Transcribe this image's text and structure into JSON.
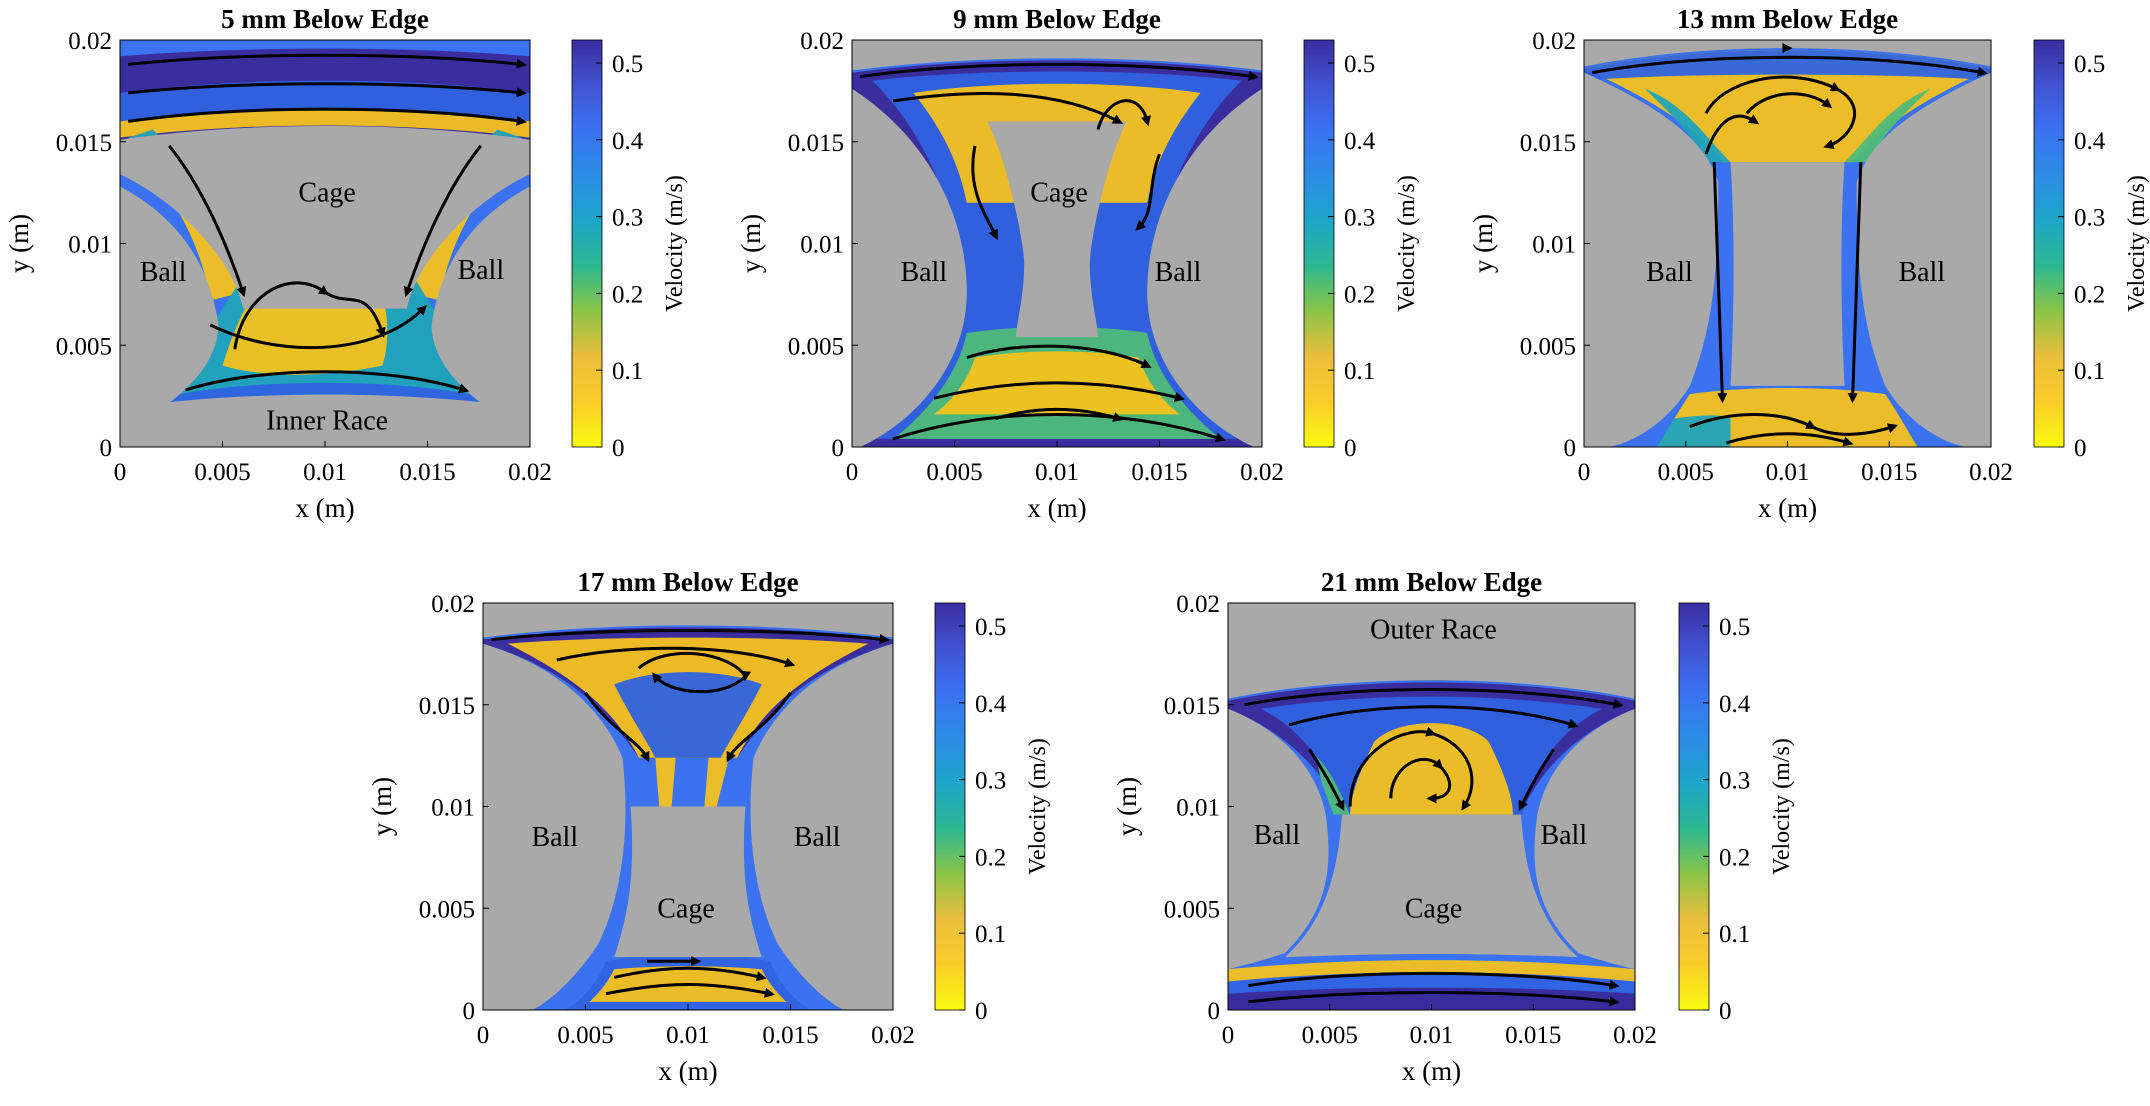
{
  "colors": {
    "solid": "#a9a9a9",
    "stream": "#000000",
    "colormap": [
      "#f9fb0e",
      "#fbcd2b",
      "#ebbe3b",
      "#8cc447",
      "#2cb890",
      "#1ca6c8",
      "#2c8ce6",
      "#3a72f2",
      "#4153d2",
      "#3a2ea0"
    ]
  },
  "chart_data": [
    {
      "type": "heatmap",
      "title": "5 mm Below Edge",
      "xlabel": "x (m)",
      "ylabel": "y (m)",
      "xlim": [
        0,
        0.02
      ],
      "ylim": [
        0,
        0.02
      ],
      "xticks": [
        0,
        0.005,
        0.01,
        0.015,
        0.02
      ],
      "xtick_labels": [
        "0",
        "0.005",
        "0.01",
        "0.015",
        "0.02"
      ],
      "yticks": [
        0,
        0.005,
        0.01,
        0.015,
        0.02
      ],
      "ytick_labels": [
        "0",
        "0.005",
        "0.01",
        "0.015",
        "0.02"
      ],
      "colorbar": {
        "label": "Velocity (m/s)",
        "range": [
          0,
          0.53
        ],
        "ticks": [
          0,
          0.1,
          0.2,
          0.3,
          0.4,
          0.5
        ],
        "tick_labels": [
          "0",
          "0.1",
          "0.2",
          "0.3",
          "0.4",
          "0.5"
        ]
      },
      "region_labels": [
        {
          "text": "Cage",
          "x": 0.0101,
          "y": 0.0125
        },
        {
          "text": "Ball",
          "x": 0.0021,
          "y": 0.0086
        },
        {
          "text": "Ball",
          "x": 0.0176,
          "y": 0.0087
        },
        {
          "text": "Inner Race",
          "x": 0.0101,
          "y": 0.0013
        }
      ]
    },
    {
      "type": "heatmap",
      "title": "9 mm Below Edge",
      "xlabel": "x (m)",
      "ylabel": "y (m)",
      "xlim": [
        0,
        0.02
      ],
      "ylim": [
        0,
        0.02
      ],
      "xticks": [
        0,
        0.005,
        0.01,
        0.015,
        0.02
      ],
      "xtick_labels": [
        "0",
        "0.005",
        "0.01",
        "0.015",
        "0.02"
      ],
      "yticks": [
        0,
        0.005,
        0.01,
        0.015,
        0.02
      ],
      "ytick_labels": [
        "0",
        "0.005",
        "0.01",
        "0.015",
        "0.02"
      ],
      "colorbar": {
        "label": "Velocity (m/s)",
        "range": [
          0,
          0.53
        ],
        "ticks": [
          0,
          0.1,
          0.2,
          0.3,
          0.4,
          0.5
        ],
        "tick_labels": [
          "0",
          "0.1",
          "0.2",
          "0.3",
          "0.4",
          "0.5"
        ]
      },
      "region_labels": [
        {
          "text": "Cage",
          "x": 0.0101,
          "y": 0.0125
        },
        {
          "text": "Ball",
          "x": 0.0035,
          "y": 0.0086
        },
        {
          "text": "Ball",
          "x": 0.0159,
          "y": 0.0086
        }
      ]
    },
    {
      "type": "heatmap",
      "title": "13 mm Below Edge",
      "xlabel": "x (m)",
      "ylabel": "y (m)",
      "xlim": [
        0,
        0.02
      ],
      "ylim": [
        0,
        0.02
      ],
      "xticks": [
        0,
        0.005,
        0.01,
        0.015,
        0.02
      ],
      "xtick_labels": [
        "0",
        "0.005",
        "0.01",
        "0.015",
        "0.02"
      ],
      "yticks": [
        0,
        0.005,
        0.01,
        0.015,
        0.02
      ],
      "ytick_labels": [
        "0",
        "0.005",
        "0.01",
        "0.015",
        "0.02"
      ],
      "colorbar": {
        "label": "Velocity (m/s)",
        "range": [
          0,
          0.53
        ],
        "ticks": [
          0,
          0.1,
          0.2,
          0.3,
          0.4,
          0.5
        ],
        "tick_labels": [
          "0",
          "0.1",
          "0.2",
          "0.3",
          "0.4",
          "0.5"
        ]
      },
      "region_labels": [
        {
          "text": "Ball",
          "x": 0.0042,
          "y": 0.0086
        },
        {
          "text": "Ball",
          "x": 0.0166,
          "y": 0.0086
        }
      ]
    },
    {
      "type": "heatmap",
      "title": "17 mm Below Edge",
      "xlabel": "x (m)",
      "ylabel": "y (m)",
      "xlim": [
        0,
        0.02
      ],
      "ylim": [
        0,
        0.02
      ],
      "xticks": [
        0,
        0.005,
        0.01,
        0.015,
        0.02
      ],
      "xtick_labels": [
        "0",
        "0.005",
        "0.01",
        "0.015",
        "0.02"
      ],
      "yticks": [
        0,
        0.005,
        0.01,
        0.015,
        0.02
      ],
      "ytick_labels": [
        "0",
        "0.005",
        "0.01",
        "0.015",
        "0.02"
      ],
      "colorbar": {
        "label": "Velocity (m/s)",
        "range": [
          0,
          0.53
        ],
        "ticks": [
          0,
          0.1,
          0.2,
          0.3,
          0.4,
          0.5
        ],
        "tick_labels": [
          "0",
          "0.1",
          "0.2",
          "0.3",
          "0.4",
          "0.5"
        ]
      },
      "region_labels": [
        {
          "text": "Ball",
          "x": 0.0035,
          "y": 0.0085
        },
        {
          "text": "Ball",
          "x": 0.0163,
          "y": 0.0085
        },
        {
          "text": "Cage",
          "x": 0.0099,
          "y": 0.005
        }
      ]
    },
    {
      "type": "heatmap",
      "title": "21 mm Below Edge",
      "xlabel": "x (m)",
      "ylabel": "y (m)",
      "xlim": [
        0,
        0.02
      ],
      "ylim": [
        0,
        0.02
      ],
      "xticks": [
        0,
        0.005,
        0.01,
        0.015,
        0.02
      ],
      "xtick_labels": [
        "0",
        "0.005",
        "0.01",
        "0.015",
        "0.02"
      ],
      "yticks": [
        0,
        0.005,
        0.01,
        0.015,
        0.02
      ],
      "ytick_labels": [
        "0",
        "0.005",
        "0.01",
        "0.015",
        "0.02"
      ],
      "colorbar": {
        "label": "Velocity (m/s)",
        "range": [
          0,
          0.53
        ],
        "ticks": [
          0,
          0.1,
          0.2,
          0.3,
          0.4,
          0.5
        ],
        "tick_labels": [
          "0",
          "0.1",
          "0.2",
          "0.3",
          "0.4",
          "0.5"
        ]
      },
      "region_labels": [
        {
          "text": "Outer Race",
          "x": 0.0101,
          "y": 0.0187
        },
        {
          "text": "Ball",
          "x": 0.0024,
          "y": 0.0086
        },
        {
          "text": "Ball",
          "x": 0.0165,
          "y": 0.0086
        },
        {
          "text": "Cage",
          "x": 0.0101,
          "y": 0.005
        }
      ]
    }
  ]
}
